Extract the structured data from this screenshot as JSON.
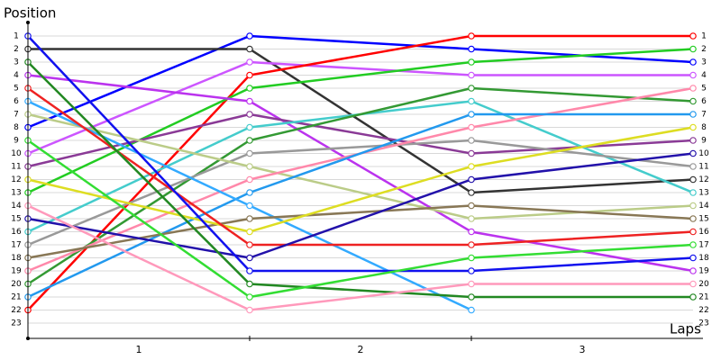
{
  "chart_data": {
    "type": "line",
    "x_label": "Laps",
    "y_label": "Position",
    "x": [
      0,
      1,
      2,
      3
    ],
    "xlim": [
      0,
      3
    ],
    "xticks": [
      {
        "value": 0.5,
        "label": "1"
      },
      {
        "value": 1.5,
        "label": "2"
      },
      {
        "value": 2.5,
        "label": "3"
      }
    ],
    "ylim": [
      0,
      24
    ],
    "y_inverted": true,
    "yticks": [
      1,
      2,
      3,
      4,
      5,
      6,
      7,
      8,
      9,
      10,
      11,
      12,
      13,
      14,
      15,
      16,
      17,
      18,
      19,
      20,
      21,
      22,
      23
    ],
    "grid": true,
    "series": [
      {
        "color": "#0000ff",
        "values": [
          8,
          1,
          2,
          3
        ]
      },
      {
        "color": "#333333",
        "values": [
          2,
          2,
          13,
          12
        ]
      },
      {
        "color": "#cc55ff",
        "values": [
          10,
          3,
          4,
          4
        ]
      },
      {
        "color": "#ff0000",
        "values": [
          22,
          4,
          1,
          1
        ]
      },
      {
        "color": "#22cc22",
        "values": [
          13,
          5,
          3,
          2
        ]
      },
      {
        "color": "#bb33ee",
        "values": [
          4,
          6,
          16,
          19
        ]
      },
      {
        "color": "#8a3a96",
        "values": [
          11,
          7,
          10,
          9
        ]
      },
      {
        "color": "#44cccc",
        "values": [
          16,
          8,
          6,
          13
        ]
      },
      {
        "color": "#339933",
        "values": [
          20,
          9,
          5,
          6
        ]
      },
      {
        "color": "#999999",
        "values": [
          17,
          10,
          9,
          11
        ]
      },
      {
        "color": "#bbcc88",
        "values": [
          7,
          11,
          15,
          14
        ]
      },
      {
        "color": "#ff88aa",
        "values": [
          19,
          12,
          8,
          5
        ]
      },
      {
        "color": "#2299ee",
        "values": [
          21,
          13,
          7,
          7
        ]
      },
      {
        "color": "#33aaff",
        "values": [
          6,
          14,
          22,
          null
        ]
      },
      {
        "color": "#887755",
        "values": [
          18,
          15,
          14,
          15
        ]
      },
      {
        "color": "#dddd22",
        "values": [
          12,
          16,
          11,
          8
        ]
      },
      {
        "color": "#ee2222",
        "values": [
          5,
          17,
          17,
          16
        ]
      },
      {
        "color": "#2211aa",
        "values": [
          15,
          18,
          12,
          10
        ]
      },
      {
        "color": "#1111ee",
        "values": [
          1,
          19,
          19,
          18
        ]
      },
      {
        "color": "#228822",
        "values": [
          3,
          20,
          21,
          21
        ]
      },
      {
        "color": "#33dd33",
        "values": [
          9,
          21,
          18,
          17
        ]
      },
      {
        "color": "#ff99bb",
        "values": [
          14,
          22,
          20,
          20
        ]
      }
    ]
  }
}
